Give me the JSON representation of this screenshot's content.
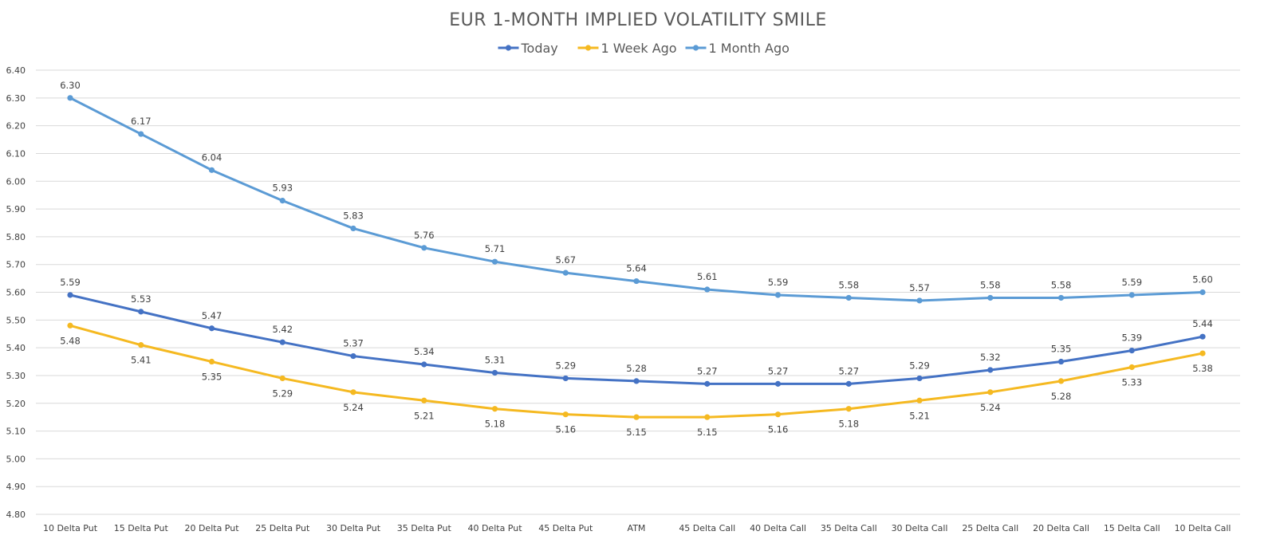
{
  "chart_data": {
    "type": "line",
    "title": "EUR 1-MONTH IMPLIED VOLATILITY SMILE",
    "xlabel": "",
    "ylabel": "",
    "ylim": [
      4.8,
      6.4
    ],
    "y_ticks": [
      "4.80",
      "4.90",
      "5.00",
      "5.10",
      "5.20",
      "5.30",
      "5.40",
      "5.50",
      "5.60",
      "5.70",
      "5.80",
      "5.90",
      "6.00",
      "6.10",
      "6.20",
      "6.30",
      "6.40"
    ],
    "grid": true,
    "legend_position": "top",
    "categories": [
      "10 Delta Put",
      "15 Delta Put",
      "20 Delta Put",
      "25 Delta Put",
      "30 Delta Put",
      "35 Delta Put",
      "40 Delta Put",
      "45 Delta Put",
      "ATM",
      "45 Delta Call",
      "40 Delta Call",
      "35 Delta Call",
      "30 Delta Call",
      "25 Delta Call",
      "20 Delta Call",
      "15 Delta Call",
      "10 Delta Call"
    ],
    "series": [
      {
        "name": "Today",
        "color": "#4472c4",
        "label_position": "above",
        "values": [
          5.59,
          5.53,
          5.47,
          5.42,
          5.37,
          5.34,
          5.31,
          5.29,
          5.28,
          5.27,
          5.27,
          5.27,
          5.29,
          5.32,
          5.35,
          5.39,
          5.44
        ],
        "labels": [
          "5.59",
          "5.53",
          "5.47",
          "5.42",
          "5.37",
          "5.34",
          "5.31",
          "5.29",
          "5.28",
          "5.27",
          "5.27",
          "5.27",
          "5.29",
          "5.32",
          "5.35",
          "5.39",
          "5.44"
        ]
      },
      {
        "name": "1 Week Ago",
        "color": "#f5b921",
        "label_position": "below",
        "values": [
          5.48,
          5.41,
          5.35,
          5.29,
          5.24,
          5.21,
          5.18,
          5.16,
          5.15,
          5.15,
          5.16,
          5.18,
          5.21,
          5.24,
          5.28,
          5.33,
          5.38
        ],
        "labels": [
          "5.48",
          "5.41",
          "5.35",
          "5.29",
          "5.24",
          "5.21",
          "5.18",
          "5.16",
          "5.15",
          "5.15",
          "5.16",
          "5.18",
          "5.21",
          "5.24",
          "5.28",
          "5.33",
          "5.38"
        ]
      },
      {
        "name": "1 Month Ago",
        "color": "#5b9bd5",
        "label_position": "above",
        "values": [
          6.3,
          6.17,
          6.04,
          5.93,
          5.83,
          5.76,
          5.71,
          5.67,
          5.64,
          5.61,
          5.59,
          5.58,
          5.57,
          5.58,
          5.58,
          5.59,
          5.6
        ],
        "labels": [
          "6.30",
          "6.17",
          "6.04",
          "5.93",
          "5.83",
          "5.76",
          "5.71",
          "5.67",
          "5.64",
          "5.61",
          "5.59",
          "5.58",
          "5.57",
          "5.58",
          "5.58",
          "5.59",
          "5.60"
        ]
      }
    ]
  }
}
